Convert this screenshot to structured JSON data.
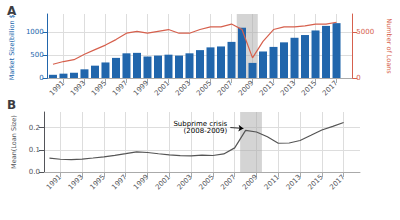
{
  "chart_data": [
    {
      "type": "bar",
      "title": "A",
      "x": [
        1990,
        1991,
        1992,
        1993,
        1994,
        1995,
        1996,
        1997,
        1998,
        1999,
        2000,
        2001,
        2002,
        2003,
        2004,
        2005,
        2006,
        2007,
        2008,
        2009,
        2010,
        2011,
        2012,
        2013,
        2014,
        2015,
        2016,
        2017
      ],
      "series": [
        {
          "type": "bar",
          "color": "#2166ac",
          "values": [
            70,
            95,
            115,
            190,
            270,
            340,
            440,
            540,
            550,
            470,
            490,
            510,
            490,
            540,
            610,
            670,
            690,
            790,
            1100,
            330,
            580,
            680,
            780,
            880,
            940,
            1040,
            1140,
            1200
          ]
        },
        {
          "type": "line",
          "color": "#d6604d",
          "axis": "y2",
          "values": [
            1500,
            1800,
            2000,
            2600,
            3100,
            3600,
            4200,
            4900,
            5100,
            4900,
            5100,
            5300,
            4900,
            4900,
            5300,
            5600,
            5600,
            5900,
            5300,
            2200,
            4000,
            5300,
            5600,
            5600,
            5700,
            5900,
            5900,
            6100
          ]
        }
      ],
      "ylabel": "Market Size(billion $)",
      "y2label": "Number of Loans",
      "xlim": [
        1989.5,
        2018.5
      ],
      "xticks": [
        1991,
        1993,
        1995,
        1997,
        1999,
        2001,
        2003,
        2005,
        2007,
        2009,
        2011,
        2013,
        2015,
        2017
      ],
      "ylim": [
        0,
        1400
      ],
      "yticks": [
        0,
        500,
        1000
      ],
      "y2lim": [
        0,
        7000
      ],
      "y2ticks": [
        0,
        5000
      ],
      "grid": true,
      "shaded_span": {
        "start": 2007.5,
        "end": 2009.5,
        "color": "#aaaaaa"
      }
    },
    {
      "type": "line",
      "title": "B",
      "x": [
        1990,
        1991,
        1992,
        1993,
        1994,
        1995,
        1996,
        1997,
        1998,
        1999,
        2000,
        2001,
        2002,
        2003,
        2004,
        2005,
        2006,
        2007,
        2008,
        2009,
        2010,
        2011,
        2012,
        2013,
        2014,
        2015,
        2016,
        2017
      ],
      "values": [
        0.06236,
        0.05743,
        0.05554,
        0.05822,
        0.063,
        0.06821,
        0.075,
        0.08232,
        0.0905,
        0.08778,
        0.08211,
        0.07711,
        0.07332,
        0.07264,
        0.07604,
        0.07418,
        0.08141,
        0.10853,
        0.18718,
        0.17996,
        0.15841,
        0.12928,
        0.13055,
        0.14161,
        0.165,
        0.18893,
        0.20553,
        0.22286
      ],
      "color": "#555555",
      "ylabel": "Mean(Loan Size)",
      "annotation": "Subprime crisis\n(2008-2009)",
      "xlim": [
        1989.5,
        2018.5
      ],
      "xticks": [
        1991,
        1993,
        1995,
        1997,
        1999,
        2001,
        2003,
        2005,
        2007,
        2009,
        2011,
        2013,
        2015,
        2017
      ],
      "ylim": [
        0,
        0.27
      ],
      "yticks": [
        {
          "value": 0,
          "label": "0.0"
        },
        0.1,
        0.2
      ],
      "grid": true,
      "shaded_span": {
        "start": 2007.5,
        "end": 2009.5,
        "color": "#aaaaaa"
      }
    }
  ]
}
